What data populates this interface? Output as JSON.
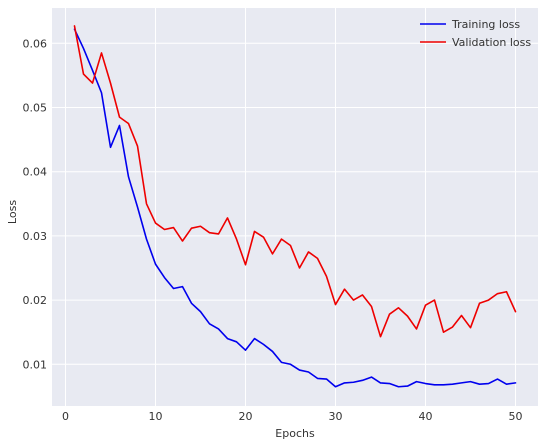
{
  "chart_data": {
    "type": "line",
    "title": "",
    "xlabel": "Epochs",
    "ylabel": "Loss",
    "xlim": [
      -1.5,
      52.5
    ],
    "ylim": [
      0.0035,
      0.0655
    ],
    "xticks": [
      0,
      10,
      20,
      30,
      40,
      50
    ],
    "yticks": [
      0.01,
      0.02,
      0.03,
      0.04,
      0.05,
      0.06
    ],
    "xtick_labels": [
      "0",
      "10",
      "20",
      "30",
      "40",
      "50"
    ],
    "ytick_labels": [
      "0.01",
      "0.02",
      "0.03",
      "0.04",
      "0.05",
      "0.06"
    ],
    "grid": true,
    "background": "#e8eaf2",
    "legend_position": "top-right",
    "x": [
      1,
      2,
      3,
      4,
      5,
      6,
      7,
      8,
      9,
      10,
      11,
      12,
      13,
      14,
      15,
      16,
      17,
      18,
      19,
      20,
      21,
      22,
      23,
      24,
      25,
      26,
      27,
      28,
      29,
      30,
      31,
      32,
      33,
      34,
      35,
      36,
      37,
      38,
      39,
      40,
      41,
      42,
      43,
      44,
      45,
      46,
      47,
      48,
      49,
      50
    ],
    "series": [
      {
        "name": "Training loss",
        "color": "#0000ee",
        "values": [
          0.0622,
          0.0592,
          0.0558,
          0.0523,
          0.0438,
          0.0472,
          0.0392,
          0.0345,
          0.0295,
          0.0256,
          0.0235,
          0.0218,
          0.0221,
          0.0195,
          0.0182,
          0.0163,
          0.0155,
          0.014,
          0.0135,
          0.0122,
          0.014,
          0.0131,
          0.012,
          0.0103,
          0.01,
          0.0091,
          0.0088,
          0.0078,
          0.0077,
          0.0065,
          0.0071,
          0.0072,
          0.0075,
          0.008,
          0.0071,
          0.007,
          0.0065,
          0.0066,
          0.0073,
          0.007,
          0.0068,
          0.0068,
          0.0069,
          0.0071,
          0.0073,
          0.0069,
          0.007,
          0.0077,
          0.0069,
          0.0071
        ]
      },
      {
        "name": "Validation loss",
        "color": "#ee0000",
        "values": [
          0.0627,
          0.0552,
          0.0538,
          0.0585,
          0.0538,
          0.0485,
          0.0475,
          0.044,
          0.035,
          0.032,
          0.031,
          0.0313,
          0.0292,
          0.0312,
          0.0315,
          0.0305,
          0.0303,
          0.0328,
          0.0295,
          0.0255,
          0.0307,
          0.0298,
          0.0272,
          0.0295,
          0.0285,
          0.025,
          0.0275,
          0.0265,
          0.0237,
          0.0193,
          0.0217,
          0.02,
          0.0208,
          0.019,
          0.0143,
          0.0178,
          0.0188,
          0.0175,
          0.0155,
          0.0192,
          0.02,
          0.015,
          0.0158,
          0.0176,
          0.0157,
          0.0195,
          0.02,
          0.021,
          0.0213,
          0.0182
        ]
      }
    ]
  }
}
